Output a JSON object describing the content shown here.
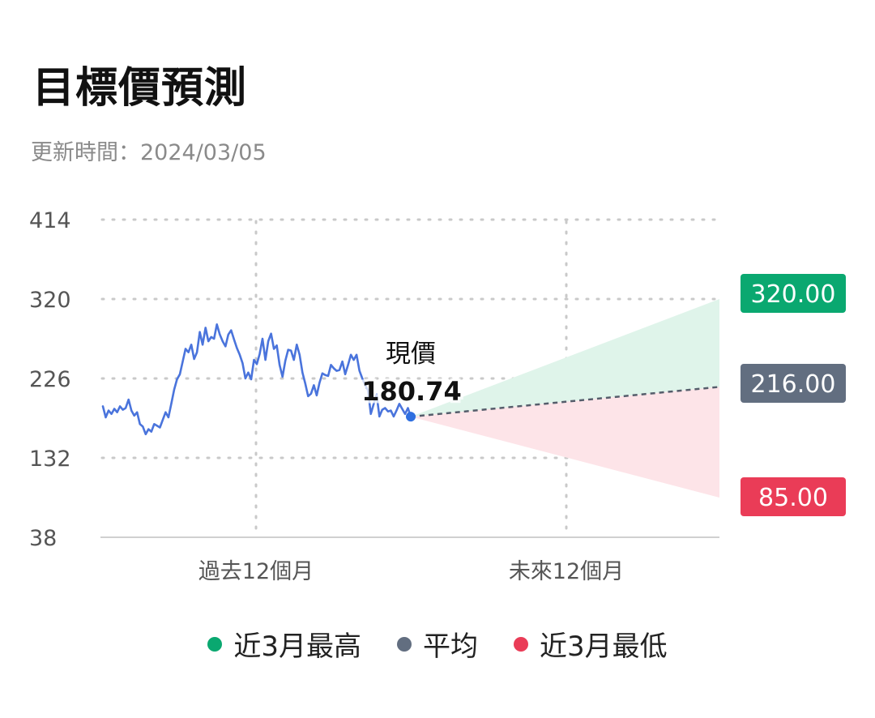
{
  "header": {
    "title": "目標價預測",
    "updated": "更新時間：2024/03/05"
  },
  "chart_data": {
    "type": "line",
    "title": "目標價預測",
    "y_ticks": [
      "414",
      "320",
      "226",
      "132",
      "38"
    ],
    "ylim": [
      38,
      414
    ],
    "x_periods": [
      "過去12個月",
      "未來12個月"
    ],
    "grid": true,
    "current_price": {
      "label": "現價",
      "value": "180.74"
    },
    "history_series": {
      "name": "",
      "values": [
        193,
        180,
        188,
        184,
        190,
        186,
        193,
        189,
        191,
        201,
        188,
        182,
        186,
        172,
        169,
        160,
        166,
        163,
        172,
        170,
        168,
        177,
        186,
        180,
        196,
        213,
        225,
        231,
        246,
        261,
        257,
        266,
        249,
        257,
        281,
        266,
        286,
        270,
        275,
        273,
        290,
        278,
        270,
        264,
        278,
        283,
        272,
        262,
        254,
        244,
        226,
        233,
        225,
        248,
        243,
        255,
        273,
        248,
        270,
        279,
        261,
        265,
        242,
        228,
        247,
        260,
        259,
        248,
        266,
        254,
        233,
        220,
        205,
        208,
        218,
        206,
        221,
        232,
        230,
        229,
        242,
        238,
        235,
        236,
        246,
        231,
        242,
        254,
        248,
        254,
        235,
        226,
        218,
        212,
        184,
        196,
        207,
        181,
        189,
        191,
        187,
        188,
        181,
        188,
        196,
        190,
        184,
        191,
        180.74
      ],
      "color": "#4a74dc"
    },
    "forecast": [
      {
        "name": "近3月最高",
        "value": 320,
        "label": "320.00",
        "color": "#0aa870",
        "fill": "#dff4ea"
      },
      {
        "name": "平均",
        "value": 216,
        "label": "216.00",
        "color": "#626e80"
      },
      {
        "name": "近3月最低",
        "value": 85,
        "label": "85.00",
        "color": "#ea3c57",
        "fill": "#fde4e8"
      }
    ]
  },
  "legend": [
    {
      "label": "近3月最高",
      "color": "#0aa870"
    },
    {
      "label": "平均",
      "color": "#626e80"
    },
    {
      "label": "近3月最低",
      "color": "#ea3c57"
    }
  ]
}
